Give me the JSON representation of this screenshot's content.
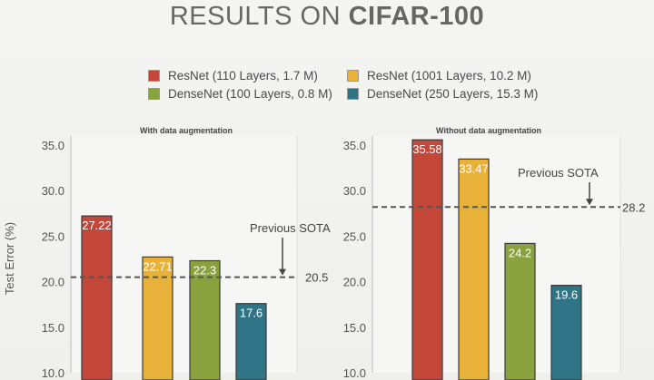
{
  "title": {
    "prefix": "RESULTS ON ",
    "bold": "CIFAR-100"
  },
  "legend": [
    {
      "label": "ResNet (110 Layers, 1.7 M)",
      "color": "#c4473a"
    },
    {
      "label": "ResNet (1001 Layers, 10.2 M)",
      "color": "#e8b23a"
    },
    {
      "label": "DenseNet (100 Layers, 0.8 M)",
      "color": "#8aa23e"
    },
    {
      "label": "DenseNet (250 Layers, 15.3 M)",
      "color": "#2f7487"
    }
  ],
  "chart_data": [
    {
      "type": "bar",
      "title": "With data augmentation",
      "ylabel": "Test Error (%)",
      "ylim": [
        10,
        35
      ],
      "yticks": [
        "10.0",
        "15.0",
        "20.0",
        "25.0",
        "30.0",
        "35.0"
      ],
      "categories": [
        "ResNet (110 Layers, 1.7 M)",
        "ResNet (1001 Layers, 10.2 M)",
        "DenseNet (100 Layers, 0.8 M)",
        "DenseNet (250 Layers, 15.3 M)"
      ],
      "values": [
        27.22,
        22.71,
        22.3,
        17.6
      ],
      "value_labels": [
        "27.22",
        "22.71",
        "22.3",
        "17.6"
      ],
      "colors": [
        "#c4473a",
        "#e8b23a",
        "#8aa23e",
        "#2f7487"
      ],
      "reference_line": {
        "value": 20.5,
        "label": "20.5",
        "annotation": "Previous SOTA"
      }
    },
    {
      "type": "bar",
      "title": "Without data augmentation",
      "ylabel": "",
      "ylim": [
        10,
        35
      ],
      "yticks": [
        "10.0",
        "15.0",
        "20.0",
        "25.0",
        "30.0",
        "35.0"
      ],
      "categories": [
        "ResNet (110 Layers, 1.7 M)",
        "ResNet (1001 Layers, 10.2 M)",
        "DenseNet (100 Layers, 0.8 M)",
        "DenseNet (250 Layers, 15.3 M)"
      ],
      "values": [
        35.58,
        33.47,
        24.2,
        19.6
      ],
      "value_labels": [
        "35.58",
        "33.47",
        "24.2",
        "19.6"
      ],
      "colors": [
        "#c4473a",
        "#e8b23a",
        "#8aa23e",
        "#2f7487"
      ],
      "reference_line": {
        "value": 28.2,
        "label": "28.2",
        "annotation": "Previous SOTA"
      }
    }
  ]
}
